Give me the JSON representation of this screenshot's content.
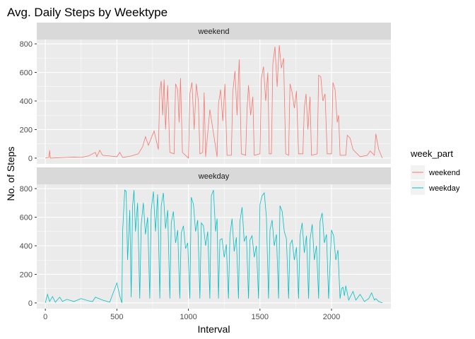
{
  "chart_data": {
    "type": "line",
    "title": "Avg. Daily Steps by Weektype",
    "xlabel": "Interval",
    "ylabel": "No. of Steps",
    "xlim": [
      -60,
      2415
    ],
    "ylim": [
      -40,
      830
    ],
    "x_ticks": [
      0,
      500,
      1000,
      1500,
      2000
    ],
    "y_ticks": [
      0,
      200,
      400,
      600,
      800
    ],
    "grid": true,
    "legend": {
      "title": "week_part",
      "position": "right",
      "entries": [
        "weekend",
        "weekday"
      ]
    },
    "panels": [
      "weekend",
      "weekday"
    ],
    "colors": {
      "weekend": "#F8766D",
      "weekday": "#00BFC4"
    },
    "series": [
      {
        "name": "weekend",
        "panel": "weekend",
        "points": [
          [
            0,
            0
          ],
          [
            25,
            5
          ],
          [
            30,
            55
          ],
          [
            35,
            0
          ],
          [
            100,
            3
          ],
          [
            150,
            5
          ],
          [
            200,
            8
          ],
          [
            250,
            5
          ],
          [
            300,
            15
          ],
          [
            330,
            30
          ],
          [
            350,
            40
          ],
          [
            360,
            10
          ],
          [
            380,
            55
          ],
          [
            400,
            20
          ],
          [
            450,
            15
          ],
          [
            500,
            10
          ],
          [
            520,
            40
          ],
          [
            540,
            5
          ],
          [
            600,
            15
          ],
          [
            650,
            30
          ],
          [
            680,
            80
          ],
          [
            700,
            150
          ],
          [
            720,
            90
          ],
          [
            760,
            190
          ],
          [
            790,
            60
          ],
          [
            800,
            480
          ],
          [
            810,
            540
          ],
          [
            820,
            300
          ],
          [
            830,
            550
          ],
          [
            840,
            200
          ],
          [
            855,
            510
          ],
          [
            870,
            40
          ],
          [
            900,
            30
          ],
          [
            910,
            520
          ],
          [
            925,
            480
          ],
          [
            935,
            250
          ],
          [
            945,
            560
          ],
          [
            958,
            40
          ],
          [
            1000,
            0
          ],
          [
            1010,
            450
          ],
          [
            1025,
            530
          ],
          [
            1040,
            200
          ],
          [
            1055,
            520
          ],
          [
            1070,
            400
          ],
          [
            1080,
            30
          ],
          [
            1100,
            40
          ],
          [
            1110,
            460
          ],
          [
            1120,
            10
          ],
          [
            1150,
            340
          ],
          [
            1200,
            10
          ],
          [
            1210,
            380
          ],
          [
            1225,
            480
          ],
          [
            1240,
            260
          ],
          [
            1255,
            520
          ],
          [
            1270,
            20
          ],
          [
            1300,
            20
          ],
          [
            1310,
            460
          ],
          [
            1325,
            610
          ],
          [
            1340,
            300
          ],
          [
            1355,
            690
          ],
          [
            1370,
            30
          ],
          [
            1400,
            20
          ],
          [
            1410,
            350
          ],
          [
            1420,
            510
          ],
          [
            1435,
            300
          ],
          [
            1450,
            430
          ],
          [
            1460,
            20
          ],
          [
            1500,
            30
          ],
          [
            1510,
            560
          ],
          [
            1525,
            640
          ],
          [
            1540,
            400
          ],
          [
            1555,
            600
          ],
          [
            1565,
            30
          ],
          [
            1580,
            30
          ],
          [
            1590,
            660
          ],
          [
            1605,
            780
          ],
          [
            1620,
            500
          ],
          [
            1635,
            790
          ],
          [
            1650,
            630
          ],
          [
            1665,
            700
          ],
          [
            1680,
            30
          ],
          [
            1700,
            20
          ],
          [
            1710,
            520
          ],
          [
            1725,
            460
          ],
          [
            1740,
            350
          ],
          [
            1755,
            470
          ],
          [
            1770,
            30
          ],
          [
            1800,
            30
          ],
          [
            1810,
            350
          ],
          [
            1822,
            450
          ],
          [
            1835,
            200
          ],
          [
            1850,
            430
          ],
          [
            1860,
            20
          ],
          [
            1900,
            30
          ],
          [
            1910,
            580
          ],
          [
            1925,
            570
          ],
          [
            1940,
            400
          ],
          [
            1955,
            450
          ],
          [
            1970,
            30
          ],
          [
            2000,
            30
          ],
          [
            2010,
            530
          ],
          [
            2025,
            480
          ],
          [
            2040,
            250
          ],
          [
            2050,
            300
          ],
          [
            2060,
            20
          ],
          [
            2100,
            20
          ],
          [
            2110,
            160
          ],
          [
            2130,
            140
          ],
          [
            2150,
            60
          ],
          [
            2200,
            10
          ],
          [
            2250,
            20
          ],
          [
            2270,
            50
          ],
          [
            2300,
            20
          ],
          [
            2310,
            170
          ],
          [
            2330,
            60
          ],
          [
            2355,
            0
          ]
        ]
      },
      {
        "name": "weekday",
        "panel": "weekday",
        "points": [
          [
            0,
            0
          ],
          [
            15,
            60
          ],
          [
            30,
            10
          ],
          [
            50,
            45
          ],
          [
            70,
            5
          ],
          [
            100,
            40
          ],
          [
            120,
            10
          ],
          [
            150,
            25
          ],
          [
            200,
            10
          ],
          [
            250,
            30
          ],
          [
            300,
            15
          ],
          [
            330,
            10
          ],
          [
            350,
            40
          ],
          [
            400,
            20
          ],
          [
            450,
            5
          ],
          [
            500,
            140
          ],
          [
            520,
            50
          ],
          [
            535,
            0
          ],
          [
            540,
            500
          ],
          [
            555,
            790
          ],
          [
            565,
            780
          ],
          [
            575,
            300
          ],
          [
            590,
            650
          ],
          [
            600,
            40
          ],
          [
            610,
            680
          ],
          [
            620,
            790
          ],
          [
            630,
            500
          ],
          [
            645,
            700
          ],
          [
            660,
            30
          ],
          [
            670,
            550
          ],
          [
            685,
            700
          ],
          [
            700,
            480
          ],
          [
            715,
            600
          ],
          [
            730,
            30
          ],
          [
            740,
            650
          ],
          [
            755,
            780
          ],
          [
            770,
            500
          ],
          [
            785,
            760
          ],
          [
            800,
            30
          ],
          [
            810,
            680
          ],
          [
            825,
            770
          ],
          [
            840,
            520
          ],
          [
            855,
            650
          ],
          [
            870,
            30
          ],
          [
            880,
            560
          ],
          [
            895,
            640
          ],
          [
            910,
            420
          ],
          [
            925,
            510
          ],
          [
            940,
            30
          ],
          [
            950,
            490
          ],
          [
            965,
            540
          ],
          [
            980,
            380
          ],
          [
            995,
            420
          ],
          [
            1010,
            30
          ],
          [
            1020,
            740
          ],
          [
            1035,
            690
          ],
          [
            1050,
            500
          ],
          [
            1065,
            580
          ],
          [
            1080,
            30
          ],
          [
            1090,
            560
          ],
          [
            1105,
            540
          ],
          [
            1120,
            400
          ],
          [
            1135,
            500
          ],
          [
            1150,
            30
          ],
          [
            1160,
            750
          ],
          [
            1175,
            790
          ],
          [
            1190,
            500
          ],
          [
            1200,
            590
          ],
          [
            1210,
            30
          ],
          [
            1220,
            440
          ],
          [
            1235,
            450
          ],
          [
            1250,
            320
          ],
          [
            1265,
            410
          ],
          [
            1280,
            30
          ],
          [
            1290,
            470
          ],
          [
            1305,
            590
          ],
          [
            1320,
            360
          ],
          [
            1335,
            460
          ],
          [
            1350,
            30
          ],
          [
            1360,
            570
          ],
          [
            1375,
            670
          ],
          [
            1390,
            430
          ],
          [
            1405,
            470
          ],
          [
            1420,
            30
          ],
          [
            1430,
            440
          ],
          [
            1445,
            470
          ],
          [
            1460,
            320
          ],
          [
            1475,
            400
          ],
          [
            1490,
            30
          ],
          [
            1500,
            690
          ],
          [
            1515,
            750
          ],
          [
            1530,
            770
          ],
          [
            1545,
            600
          ],
          [
            1560,
            30
          ],
          [
            1570,
            510
          ],
          [
            1585,
            580
          ],
          [
            1600,
            400
          ],
          [
            1615,
            480
          ],
          [
            1630,
            30
          ],
          [
            1640,
            680
          ],
          [
            1655,
            640
          ],
          [
            1670,
            500
          ],
          [
            1685,
            450
          ],
          [
            1700,
            30
          ],
          [
            1710,
            410
          ],
          [
            1725,
            440
          ],
          [
            1740,
            300
          ],
          [
            1755,
            390
          ],
          [
            1770,
            30
          ],
          [
            1780,
            470
          ],
          [
            1795,
            560
          ],
          [
            1810,
            350
          ],
          [
            1825,
            470
          ],
          [
            1840,
            30
          ],
          [
            1850,
            440
          ],
          [
            1865,
            550
          ],
          [
            1880,
            300
          ],
          [
            1895,
            400
          ],
          [
            1910,
            30
          ],
          [
            1920,
            570
          ],
          [
            1935,
            630
          ],
          [
            1950,
            420
          ],
          [
            1965,
            480
          ],
          [
            1980,
            30
          ],
          [
            2000,
            510
          ],
          [
            2015,
            470
          ],
          [
            2030,
            300
          ],
          [
            2045,
            370
          ],
          [
            2060,
            30
          ],
          [
            2070,
            100
          ],
          [
            2080,
            110
          ],
          [
            2090,
            50
          ],
          [
            2100,
            120
          ],
          [
            2120,
            20
          ],
          [
            2150,
            80
          ],
          [
            2170,
            20
          ],
          [
            2200,
            60
          ],
          [
            2230,
            10
          ],
          [
            2260,
            30
          ],
          [
            2280,
            70
          ],
          [
            2300,
            20
          ],
          [
            2310,
            30
          ],
          [
            2330,
            10
          ],
          [
            2355,
            0
          ]
        ]
      }
    ]
  }
}
